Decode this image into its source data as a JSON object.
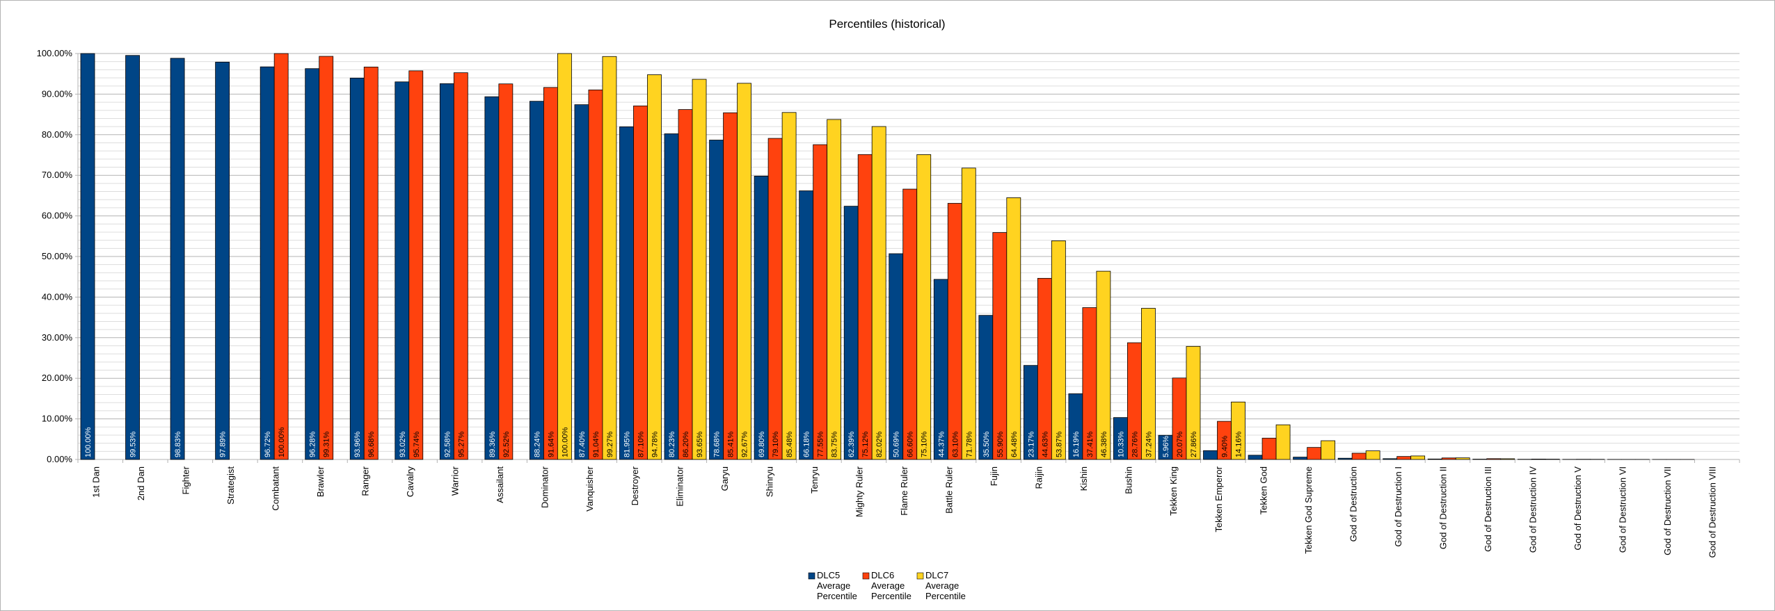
{
  "chart_data": {
    "type": "bar",
    "title": "Percentiles (historical)",
    "xlabel": "",
    "ylabel": "",
    "ylim": [
      0,
      100
    ],
    "y_ticks": [
      "0.00%",
      "10.00%",
      "20.00%",
      "30.00%",
      "40.00%",
      "50.00%",
      "60.00%",
      "70.00%",
      "80.00%",
      "90.00%",
      "100.00%"
    ],
    "grid": true,
    "legend_position": "bottom",
    "categories": [
      "1st Dan",
      "2nd Dan",
      "Fighter",
      "Strategist",
      "Combatant",
      "Brawler",
      "Ranger",
      "Cavalry",
      "Warrior",
      "Assailant",
      "Dominator",
      "Vanquisher",
      "Destroyer",
      "Eliminator",
      "Garyu",
      "Shinryu",
      "Tenryu",
      "Mighty Ruler",
      "Flame Ruler",
      "Battle Ruler",
      "Fujin",
      "Raijin",
      "Kishin",
      "Bushin",
      "Tekken King",
      "Tekken Emperor",
      "Tekken God",
      "Tekken God Supreme",
      "God of Destruction",
      "God of Destruction I",
      "God of Destruction II",
      "God of Destruction III",
      "God of Destruction IV",
      "God of Destruction V",
      "God of Destruction VI",
      "God of Destruction VII",
      "God of Destruction VIII"
    ],
    "series": [
      {
        "name": "DLC5 Average Percentile",
        "color": "#004586",
        "values": [
          100.0,
          99.53,
          98.83,
          97.89,
          96.72,
          96.28,
          93.96,
          93.02,
          92.58,
          89.36,
          88.24,
          87.4,
          81.95,
          80.23,
          78.68,
          69.8,
          66.18,
          62.39,
          50.69,
          44.37,
          35.5,
          23.17,
          16.19,
          10.33,
          5.96,
          2.18,
          1.05,
          0.58,
          0.31,
          0.2,
          0.12,
          0.08,
          0.05,
          0.03,
          0.02,
          0.01,
          0.0
        ],
        "labels": [
          "100.00%",
          "99.53%",
          "98.83%",
          "97.89%",
          "96.72%",
          "96.28%",
          "93.96%",
          "93.02%",
          "92.58%",
          "89.36%",
          "88.24%",
          "87.40%",
          "81.95%",
          "80.23%",
          "78.68%",
          "69.80%",
          "66.18%",
          "62.39%",
          "50.69%",
          "44.37%",
          "35.50%",
          "23.17%",
          "16.19%",
          "10.33%",
          "5.96%",
          "",
          "",
          "",
          "",
          "",
          "",
          "",
          "",
          "",
          "",
          "",
          ""
        ]
      },
      {
        "name": "DLC6 Average Percentile",
        "color": "#ff420e",
        "values": [
          null,
          null,
          null,
          null,
          100.0,
          99.31,
          96.68,
          95.74,
          95.27,
          92.52,
          91.64,
          91.04,
          87.1,
          86.2,
          85.41,
          79.1,
          77.55,
          75.12,
          66.6,
          63.1,
          55.9,
          44.63,
          37.41,
          28.76,
          20.07,
          9.4,
          5.26,
          2.97,
          1.55,
          0.74,
          0.38,
          0.2,
          0.1,
          0.05,
          0.02,
          0.01,
          0.0
        ],
        "labels": [
          "",
          "",
          "",
          "",
          "100.00%",
          "99.31%",
          "96.68%",
          "95.74%",
          "95.27%",
          "92.52%",
          "91.64%",
          "91.04%",
          "87.10%",
          "86.20%",
          "85.41%",
          "79.10%",
          "77.55%",
          "75.12%",
          "66.60%",
          "63.10%",
          "55.90%",
          "44.63%",
          "37.41%",
          "28.76%",
          "20.07%",
          "9.40%",
          "",
          "",
          "",
          "",
          "",
          "",
          "",
          "",
          "",
          "",
          ""
        ]
      },
      {
        "name": "DLC7 Average Percentile",
        "color": "#ffd320",
        "values": [
          null,
          null,
          null,
          null,
          null,
          null,
          null,
          null,
          null,
          null,
          100.0,
          99.27,
          94.78,
          93.65,
          92.67,
          85.48,
          83.75,
          82.02,
          75.1,
          71.78,
          64.48,
          53.87,
          46.38,
          37.24,
          27.86,
          14.16,
          8.54,
          4.62,
          2.13,
          0.87,
          0.4,
          0.18,
          0.08,
          0.04,
          0.02,
          0.01,
          0.0
        ],
        "labels": [
          "",
          "",
          "",
          "",
          "",
          "",
          "",
          "",
          "",
          "",
          "100.00%",
          "99.27%",
          "94.78%",
          "93.65%",
          "92.67%",
          "85.48%",
          "83.75%",
          "82.02%",
          "75.10%",
          "71.78%",
          "64.48%",
          "53.87%",
          "46.38%",
          "37.24%",
          "27.86%",
          "14.16%",
          "",
          "",
          "",
          "",
          "",
          "",
          "",
          "",
          "",
          "",
          ""
        ]
      }
    ]
  }
}
